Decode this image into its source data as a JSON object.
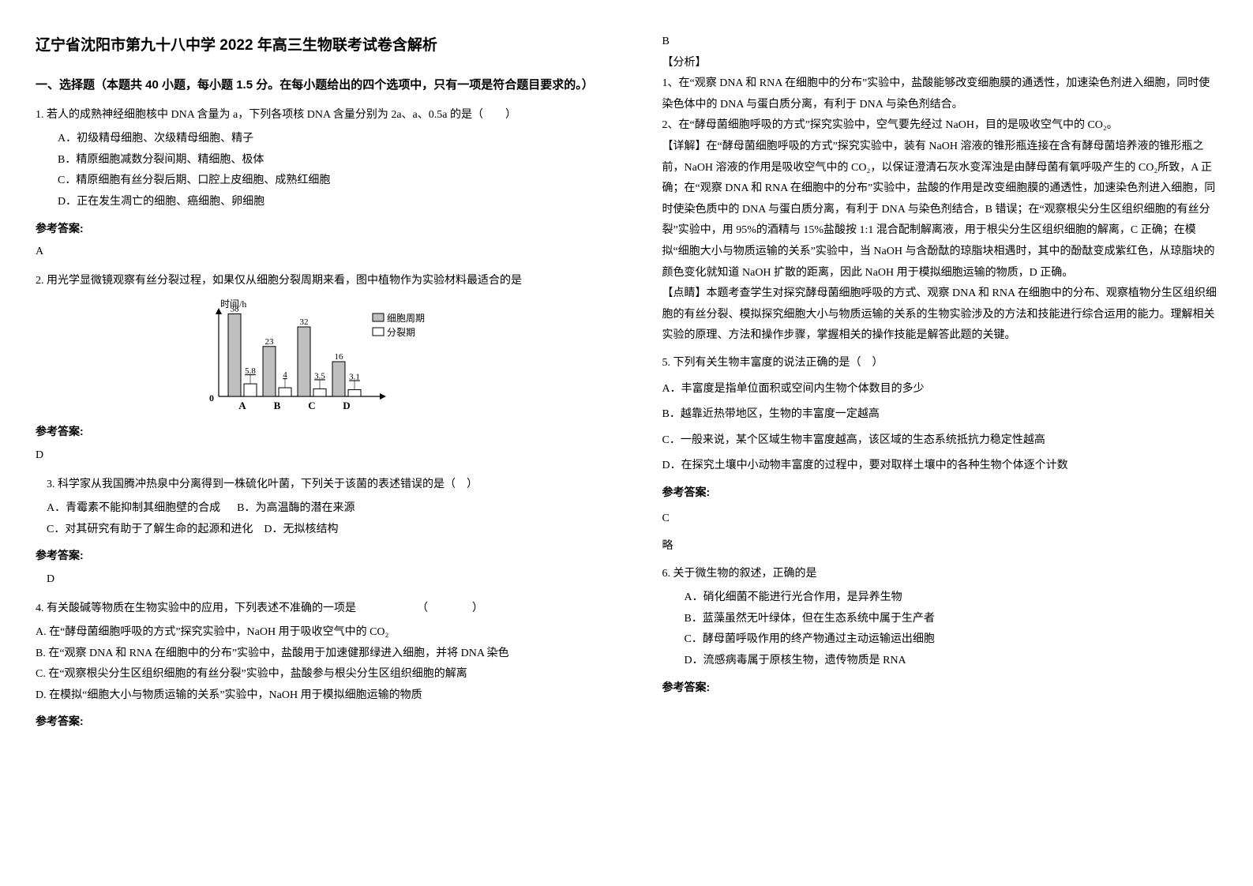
{
  "title": "辽宁省沈阳市第九十八中学 2022 年高三生物联考试卷含解析",
  "section1": "一、选择题（本题共 40 小题，每小题 1.5 分。在每小题给出的四个选项中，只有一项是符合题目要求的。）",
  "q1": {
    "stem": "1. 若人的成熟神经细胞核中 DNA 含量为 a，下列各项核 DNA 含量分别为 2a、a、0.5a 的是（　　）",
    "A": "A．初级精母细胞、次级精母细胞、精子",
    "B": "B．精原细胞减数分裂间期、精细胞、极体",
    "C": "C．精原细胞有丝分裂后期、口腔上皮细胞、成熟红细胞",
    "D": "D．正在发生凋亡的细胞、癌细胞、卵细胞",
    "ansLabel": "参考答案:",
    "ans": "A"
  },
  "q2": {
    "stem": "2. 用光学显微镜观察有丝分裂过程，如果仅从细胞分裂周期来看，图中植物作为实验材料最适合的是",
    "ansLabel": "参考答案:",
    "ans": "D"
  },
  "chart": {
    "yLabel": "时间/h",
    "categories": [
      "A",
      "B",
      "C",
      "D"
    ],
    "series1": [
      38,
      23,
      32,
      16
    ],
    "series2": [
      5.8,
      4,
      3.5,
      3.1
    ],
    "legend1": "细胞周期",
    "legend2": "分裂期",
    "color1": "#bfbfbf",
    "color2": "#ffffff",
    "axisColor": "#000000",
    "barBorder": "#000000",
    "legendFill1": "#bfbfbf",
    "legendFill2": "#ffffff",
    "maxY": 40,
    "originLabel": "0"
  },
  "q3": {
    "stem": "3. 科学家从我国腾冲热泉中分离得到一株硫化叶菌，下列关于该菌的表述错误的是（　）",
    "A": "A．青霉素不能抑制其细胞壁的合成",
    "B": "B．为高温酶的潜在来源",
    "C": "C．对其研究有助于了解生命的起源和进化",
    "D": "D．无拟核结构",
    "ansLabel": "参考答案:",
    "ans": "D"
  },
  "q4": {
    "stem": "4. 有关酸碱等物质在生物实验中的应用，下列表述不准确的一项是　　　　　　（　　　　）",
    "A": "A. 在“酵母菌细胞呼吸的方式”探究实验中，NaOH 用于吸收空气中的 CO₂",
    "B": "B. 在“观察 DNA 和 RNA 在细胞中的分布”实验中，盐酸用于加速健那绿进入细胞，并将 DNA 染色",
    "C": "C. 在“观察根尖分生区组织细胞的有丝分裂”实验中，盐酸参与根尖分生区组织细胞的解离",
    "D": "D. 在模拟“细胞大小与物质运输的关系”实验中，NaOH 用于模拟细胞运输的物质",
    "ansLabel": "参考答案:",
    "ans": "B",
    "analysisLabel": "【分析】",
    "a1": "1、在“观察 DNA 和 RNA 在细胞中的分布”实验中，盐酸能够改变细胞膜的通透性，加速染色剂进入细胞，同时使染色体中的 DNA 与蛋白质分离，有利于 DNA 与染色剂结合。",
    "a2": "2、在“酵母菌细胞呼吸的方式”探究实验中，空气要先经过 NaOH，目的是吸收空气中的 CO₂。",
    "detail": "【详解】在“酵母菌细胞呼吸的方式”探究实验中，装有 NaOH 溶液的锥形瓶连接在含有酵母菌培养液的锥形瓶之前，NaOH 溶液的作用是吸收空气中的 CO₂，以保证澄清石灰水变浑浊是由酵母菌有氧呼吸产生的 CO₂所致，A 正确；在“观察 DNA 和 RNA 在细胞中的分布”实验中，盐酸的作用是改变细胞膜的通透性，加速染色剂进入细胞，同时使染色质中的 DNA 与蛋白质分离，有利于 DNA 与染色剂结合，B 错误；在“观察根尖分生区组织细胞的有丝分裂”实验中，用 95%的酒精与 15%盐酸按 1:1 混合配制解离液，用于根尖分生区组织细胞的解离，C 正确；在模拟“细胞大小与物质运输的关系”实验中，当 NaOH 与含酚酞的琼脂块相遇时，其中的酚酞变成紫红色，从琼脂块的颜色变化就知道 NaOH 扩散的距离，因此 NaOH 用于模拟细胞运输的物质，D 正确。",
    "tip": "【点睛】本题考查学生对探究酵母菌细胞呼吸的方式、观察 DNA 和 RNA 在细胞中的分布、观察植物分生区组织细胞的有丝分裂、模拟探究细胞大小与物质运输的关系的生物实验涉及的方法和技能进行综合运用的能力。理解相关实验的原理、方法和操作步骤，掌握相关的操作技能是解答此题的关键。"
  },
  "q5": {
    "stem": "5. 下列有关生物丰富度的说法正确的是（　）",
    "A": "A．丰富度是指单位面积或空间内生物个体数目的多少",
    "B": "B．越靠近热带地区，生物的丰富度一定越高",
    "C": "C．一般来说，某个区域生物丰富度越高，该区域的生态系统抵抗力稳定性越高",
    "D": "D．在探究土壤中小动物丰富度的过程中，要对取样土壤中的各种生物个体逐个计数",
    "ansLabel": "参考答案:",
    "ans": "C",
    "note": "略"
  },
  "q6": {
    "stem": "6. 关于微生物的叙述，正确的是",
    "A": "A．硝化细菌不能进行光合作用，是异养生物",
    "B": "B．蓝藻虽然无叶绿体，但在生态系统中属于生产者",
    "C": "C．酵母菌呼吸作用的终产物通过主动运输运出细胞",
    "D": "D．流感病毒属于原核生物，遗传物质是 RNA",
    "ansLabel": "参考答案:"
  }
}
